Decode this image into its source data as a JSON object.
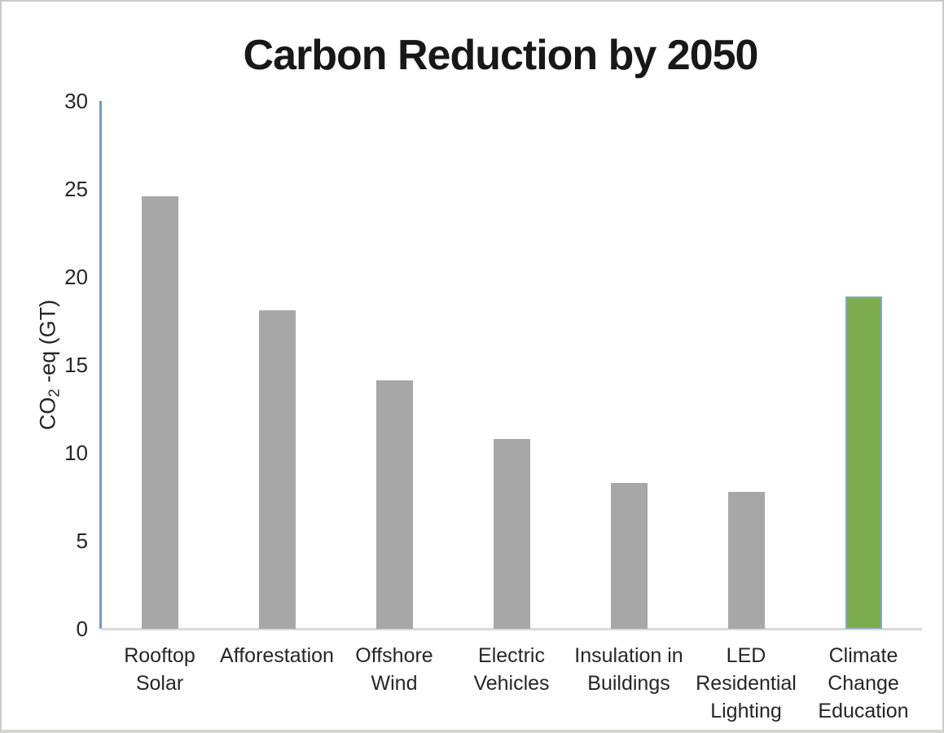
{
  "chart_data": {
    "type": "bar",
    "title": "Carbon Reduction by 2050",
    "categories": [
      "Rooftop Solar",
      "Afforestation",
      "Offshore Wind",
      "Electric Vehicles",
      "Insulation in Buildings",
      "LED Residential Lighting",
      "Climate Change Education"
    ],
    "category_lines": [
      [
        "Rooftop",
        "Solar"
      ],
      [
        "Afforestation"
      ],
      [
        "Offshore",
        "Wind"
      ],
      [
        "Electric",
        "Vehicles"
      ],
      [
        "Insulation in",
        "Buildings"
      ],
      [
        "LED",
        "Residential",
        "Lighting"
      ],
      [
        "Climate",
        "Change",
        "Education"
      ]
    ],
    "values": [
      24.6,
      18.1,
      14.1,
      10.8,
      8.3,
      7.8,
      18.9
    ],
    "bar_colors": [
      "#a7a7a7",
      "#a7a7a7",
      "#a7a7a7",
      "#a7a7a7",
      "#a7a7a7",
      "#a7a7a7",
      "#7cac4c"
    ],
    "highlighted_bar_index": 6,
    "highlight_border_color": "#85a3cc",
    "xlabel": "",
    "ylabel": {
      "pre": "CO",
      "sub": "2",
      "post": " -eq (GT)"
    },
    "ylabel_text": "CO2 -eq (GT)",
    "yticks": [
      0,
      5,
      10,
      15,
      20,
      25,
      30
    ],
    "ylim": [
      0,
      30
    ],
    "grid": false,
    "legend": false,
    "colors": {
      "y_axis_line": "#7396d5",
      "x_axis_line": "#d9d9d9",
      "text": "#262626",
      "frame_border": "#cbcbcb"
    }
  }
}
